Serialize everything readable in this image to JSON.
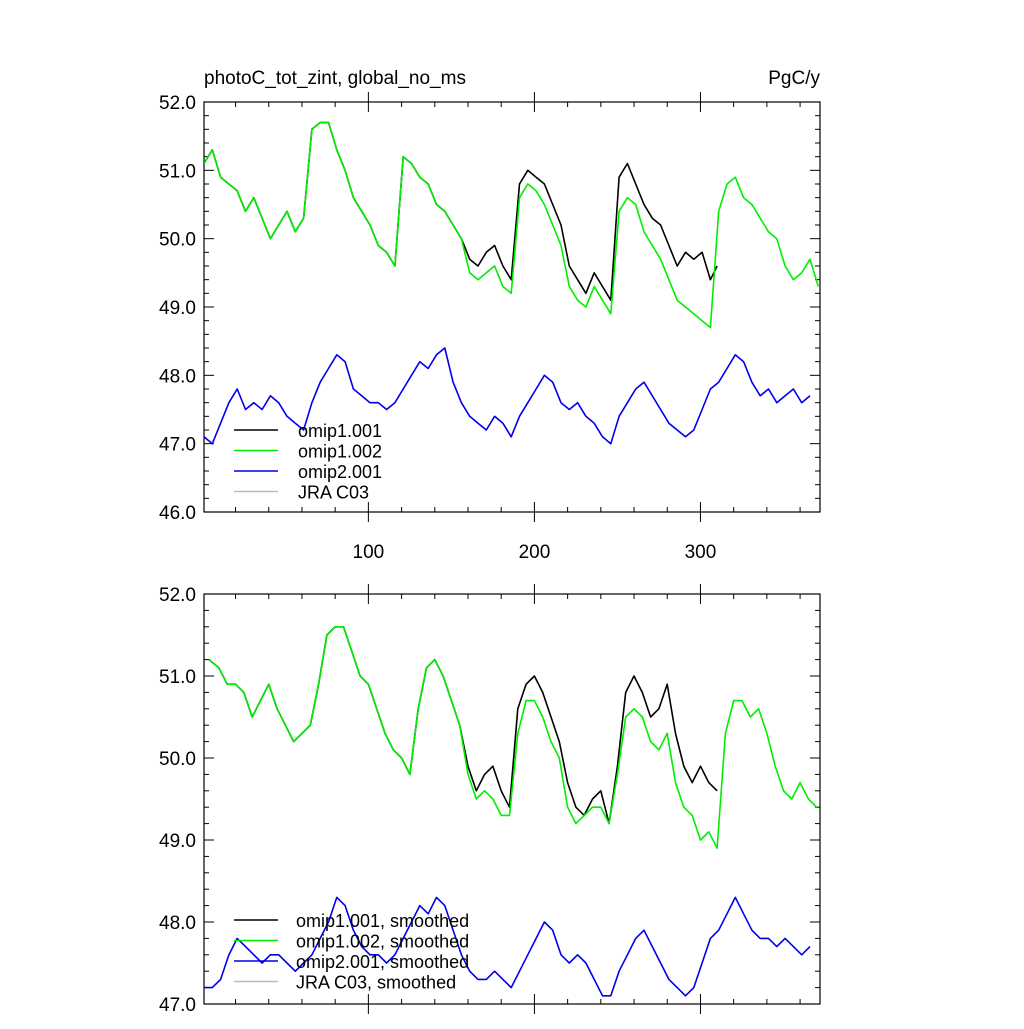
{
  "chart_data": [
    {
      "type": "line",
      "title": "photoC_tot_zint, global_no_ms",
      "units": "PgC/y",
      "xlabel": "",
      "ylabel": "",
      "xlim": [
        1,
        372
      ],
      "ylim": [
        46.0,
        52.0
      ],
      "xticks": [
        100,
        200,
        300
      ],
      "yticks": [
        "46.0",
        "47.0",
        "48.0",
        "49.0",
        "50.0",
        "51.0",
        "52.0"
      ],
      "legend_position": "bottom-left",
      "series": [
        {
          "name": "omip1.001",
          "color": "#000000",
          "x": [
            1,
            6,
            11,
            16,
            21,
            26,
            31,
            36,
            41,
            46,
            51,
            56,
            61,
            66,
            71,
            76,
            81,
            86,
            91,
            96,
            101,
            106,
            111,
            116,
            121,
            126,
            131,
            136,
            141,
            146,
            151,
            156,
            161,
            166,
            171,
            176,
            181,
            186,
            191,
            196,
            201,
            206,
            211,
            216,
            221,
            226,
            231,
            236,
            241,
            246,
            251,
            256,
            261,
            266,
            271,
            276,
            281,
            286,
            291,
            296,
            301,
            306,
            310
          ],
          "values": [
            51.1,
            51.3,
            50.9,
            50.8,
            50.7,
            50.4,
            50.6,
            50.3,
            50.0,
            50.2,
            50.4,
            50.1,
            50.3,
            51.6,
            51.7,
            51.7,
            51.3,
            51.0,
            50.6,
            50.4,
            50.2,
            49.9,
            49.8,
            49.6,
            51.2,
            51.1,
            50.9,
            50.8,
            50.5,
            50.4,
            50.2,
            50.0,
            49.7,
            49.6,
            49.8,
            49.9,
            49.6,
            49.4,
            50.8,
            51.0,
            50.9,
            50.8,
            50.5,
            50.2,
            49.6,
            49.4,
            49.2,
            49.5,
            49.3,
            49.1,
            50.9,
            51.1,
            50.8,
            50.5,
            50.3,
            50.2,
            49.9,
            49.6,
            49.8,
            49.7,
            49.8,
            49.4,
            49.6
          ]
        },
        {
          "name": "omip1.002",
          "color": "#00ee00",
          "x": [
            1,
            6,
            11,
            16,
            21,
            26,
            31,
            36,
            41,
            46,
            51,
            56,
            61,
            66,
            71,
            76,
            81,
            86,
            91,
            96,
            101,
            106,
            111,
            116,
            121,
            126,
            131,
            136,
            141,
            146,
            151,
            156,
            161,
            166,
            171,
            176,
            181,
            186,
            191,
            196,
            201,
            206,
            211,
            216,
            221,
            226,
            231,
            236,
            241,
            246,
            251,
            256,
            261,
            266,
            271,
            276,
            281,
            286,
            291,
            296,
            301,
            306,
            311,
            316,
            321,
            326,
            331,
            336,
            341,
            346,
            351,
            356,
            361,
            366,
            371
          ],
          "values": [
            51.1,
            51.3,
            50.9,
            50.8,
            50.7,
            50.4,
            50.6,
            50.3,
            50.0,
            50.2,
            50.4,
            50.1,
            50.3,
            51.6,
            51.7,
            51.7,
            51.3,
            51.0,
            50.6,
            50.4,
            50.2,
            49.9,
            49.8,
            49.6,
            51.2,
            51.1,
            50.9,
            50.8,
            50.5,
            50.4,
            50.2,
            50.0,
            49.5,
            49.4,
            49.5,
            49.6,
            49.3,
            49.2,
            50.6,
            50.8,
            50.7,
            50.5,
            50.2,
            49.9,
            49.3,
            49.1,
            49.0,
            49.3,
            49.1,
            48.9,
            50.4,
            50.6,
            50.5,
            50.1,
            49.9,
            49.7,
            49.4,
            49.1,
            49.0,
            48.9,
            48.8,
            48.7,
            50.4,
            50.8,
            50.9,
            50.6,
            50.5,
            50.3,
            50.1,
            50.0,
            49.6,
            49.4,
            49.5,
            49.7,
            49.3
          ]
        },
        {
          "name": "omip2.001",
          "color": "#0000ee",
          "x": [
            1,
            6,
            11,
            16,
            21,
            26,
            31,
            36,
            41,
            46,
            51,
            56,
            61,
            66,
            71,
            76,
            81,
            86,
            91,
            96,
            101,
            106,
            111,
            116,
            121,
            126,
            131,
            136,
            141,
            146,
            151,
            156,
            161,
            166,
            171,
            176,
            181,
            186,
            191,
            196,
            201,
            206,
            211,
            216,
            221,
            226,
            231,
            236,
            241,
            246,
            251,
            256,
            261,
            266,
            271,
            276,
            281,
            286,
            291,
            296,
            301,
            306,
            311,
            316,
            321,
            326,
            331,
            336,
            341,
            346,
            351,
            356,
            361,
            366
          ],
          "values": [
            47.1,
            47.0,
            47.3,
            47.6,
            47.8,
            47.5,
            47.6,
            47.5,
            47.7,
            47.6,
            47.4,
            47.3,
            47.2,
            47.6,
            47.9,
            48.1,
            48.3,
            48.2,
            47.8,
            47.7,
            47.6,
            47.6,
            47.5,
            47.6,
            47.8,
            48.0,
            48.2,
            48.1,
            48.3,
            48.4,
            47.9,
            47.6,
            47.4,
            47.3,
            47.2,
            47.4,
            47.3,
            47.1,
            47.4,
            47.6,
            47.8,
            48.0,
            47.9,
            47.6,
            47.5,
            47.6,
            47.4,
            47.3,
            47.1,
            47.0,
            47.4,
            47.6,
            47.8,
            47.9,
            47.7,
            47.5,
            47.3,
            47.2,
            47.1,
            47.2,
            47.5,
            47.8,
            47.9,
            48.1,
            48.3,
            48.2,
            47.9,
            47.7,
            47.8,
            47.6,
            47.7,
            47.8,
            47.6,
            47.7
          ]
        },
        {
          "name": "JRA C03",
          "color": "#bbbbbb",
          "x": [],
          "values": []
        }
      ]
    },
    {
      "type": "line",
      "title": "",
      "xlabel": "",
      "ylabel": "",
      "xlim": [
        1,
        372
      ],
      "ylim": [
        47.0,
        52.0
      ],
      "xticks": [
        100,
        200,
        300
      ],
      "yticks": [
        "47.0",
        "48.0",
        "49.0",
        "50.0",
        "51.0",
        "52.0"
      ],
      "legend_position": "bottom-left",
      "series": [
        {
          "name": "omip1.001, smoothed",
          "color": "#000000",
          "x": [
            4,
            10,
            15,
            20,
            25,
            30,
            35,
            40,
            45,
            50,
            55,
            60,
            65,
            70,
            75,
            80,
            85,
            90,
            95,
            100,
            105,
            110,
            115,
            120,
            125,
            130,
            135,
            140,
            145,
            150,
            155,
            160,
            165,
            170,
            175,
            180,
            185,
            190,
            195,
            200,
            205,
            210,
            215,
            220,
            225,
            230,
            235,
            240,
            245,
            250,
            255,
            260,
            265,
            270,
            275,
            280,
            285,
            290,
            295,
            300,
            305,
            310
          ],
          "values": [
            51.2,
            51.1,
            50.9,
            50.9,
            50.8,
            50.5,
            50.7,
            50.9,
            50.6,
            50.4,
            50.2,
            50.3,
            50.4,
            50.9,
            51.5,
            51.6,
            51.6,
            51.3,
            51.0,
            50.9,
            50.6,
            50.3,
            50.1,
            50.0,
            49.8,
            50.6,
            51.1,
            51.2,
            51.0,
            50.7,
            50.4,
            49.9,
            49.6,
            49.8,
            49.9,
            49.6,
            49.4,
            50.6,
            50.9,
            51.0,
            50.8,
            50.5,
            50.2,
            49.7,
            49.4,
            49.3,
            49.5,
            49.6,
            49.2,
            49.9,
            50.8,
            51.0,
            50.8,
            50.5,
            50.6,
            50.9,
            50.3,
            49.9,
            49.7,
            49.9,
            49.7,
            49.6
          ]
        },
        {
          "name": "omip1.002, smoothed",
          "color": "#00ee00",
          "x": [
            4,
            10,
            15,
            20,
            25,
            30,
            35,
            40,
            45,
            50,
            55,
            60,
            65,
            70,
            75,
            80,
            85,
            90,
            95,
            100,
            105,
            110,
            115,
            120,
            125,
            130,
            135,
            140,
            145,
            150,
            155,
            160,
            165,
            170,
            175,
            180,
            185,
            190,
            195,
            200,
            205,
            210,
            215,
            220,
            225,
            230,
            235,
            240,
            245,
            250,
            255,
            260,
            265,
            270,
            275,
            280,
            285,
            290,
            295,
            300,
            305,
            310,
            315,
            320,
            325,
            330,
            335,
            340,
            345,
            350,
            355,
            360,
            365,
            370
          ],
          "values": [
            51.2,
            51.1,
            50.9,
            50.9,
            50.8,
            50.5,
            50.7,
            50.9,
            50.6,
            50.4,
            50.2,
            50.3,
            50.4,
            50.9,
            51.5,
            51.6,
            51.6,
            51.3,
            51.0,
            50.9,
            50.6,
            50.3,
            50.1,
            50.0,
            49.8,
            50.6,
            51.1,
            51.2,
            51.0,
            50.7,
            50.4,
            49.8,
            49.5,
            49.6,
            49.5,
            49.3,
            49.3,
            50.3,
            50.7,
            50.7,
            50.5,
            50.2,
            50.0,
            49.4,
            49.2,
            49.3,
            49.4,
            49.4,
            49.2,
            49.8,
            50.5,
            50.6,
            50.5,
            50.2,
            50.1,
            50.3,
            49.7,
            49.4,
            49.3,
            49.0,
            49.1,
            48.9,
            50.3,
            50.7,
            50.7,
            50.5,
            50.6,
            50.3,
            49.9,
            49.6,
            49.5,
            49.7,
            49.5,
            49.4
          ]
        },
        {
          "name": "omip2.001, smoothed",
          "color": "#0000ee",
          "x": [
            1,
            6,
            11,
            16,
            21,
            26,
            31,
            36,
            41,
            46,
            51,
            56,
            61,
            66,
            71,
            76,
            81,
            86,
            91,
            96,
            101,
            106,
            111,
            116,
            121,
            126,
            131,
            136,
            141,
            146,
            151,
            156,
            161,
            166,
            171,
            176,
            181,
            186,
            191,
            196,
            201,
            206,
            211,
            216,
            221,
            226,
            231,
            236,
            241,
            246,
            251,
            256,
            261,
            266,
            271,
            276,
            281,
            286,
            291,
            296,
            301,
            306,
            311,
            316,
            321,
            326,
            331,
            336,
            341,
            346,
            351,
            356,
            361,
            366
          ],
          "values": [
            47.2,
            47.2,
            47.3,
            47.6,
            47.8,
            47.7,
            47.6,
            47.5,
            47.6,
            47.6,
            47.5,
            47.4,
            47.5,
            47.6,
            47.8,
            48.0,
            48.3,
            48.2,
            47.9,
            47.7,
            47.6,
            47.6,
            47.5,
            47.6,
            47.8,
            48.0,
            48.2,
            48.1,
            48.3,
            48.2,
            47.9,
            47.6,
            47.4,
            47.3,
            47.3,
            47.4,
            47.3,
            47.2,
            47.4,
            47.6,
            47.8,
            48.0,
            47.9,
            47.6,
            47.5,
            47.6,
            47.5,
            47.3,
            47.1,
            47.1,
            47.4,
            47.6,
            47.8,
            47.9,
            47.7,
            47.5,
            47.3,
            47.2,
            47.1,
            47.2,
            47.5,
            47.8,
            47.9,
            48.1,
            48.3,
            48.1,
            47.9,
            47.8,
            47.8,
            47.7,
            47.8,
            47.7,
            47.6,
            47.7
          ]
        },
        {
          "name": "JRA C03, smoothed",
          "color": "#bbbbbb",
          "x": [],
          "values": []
        }
      ]
    }
  ]
}
